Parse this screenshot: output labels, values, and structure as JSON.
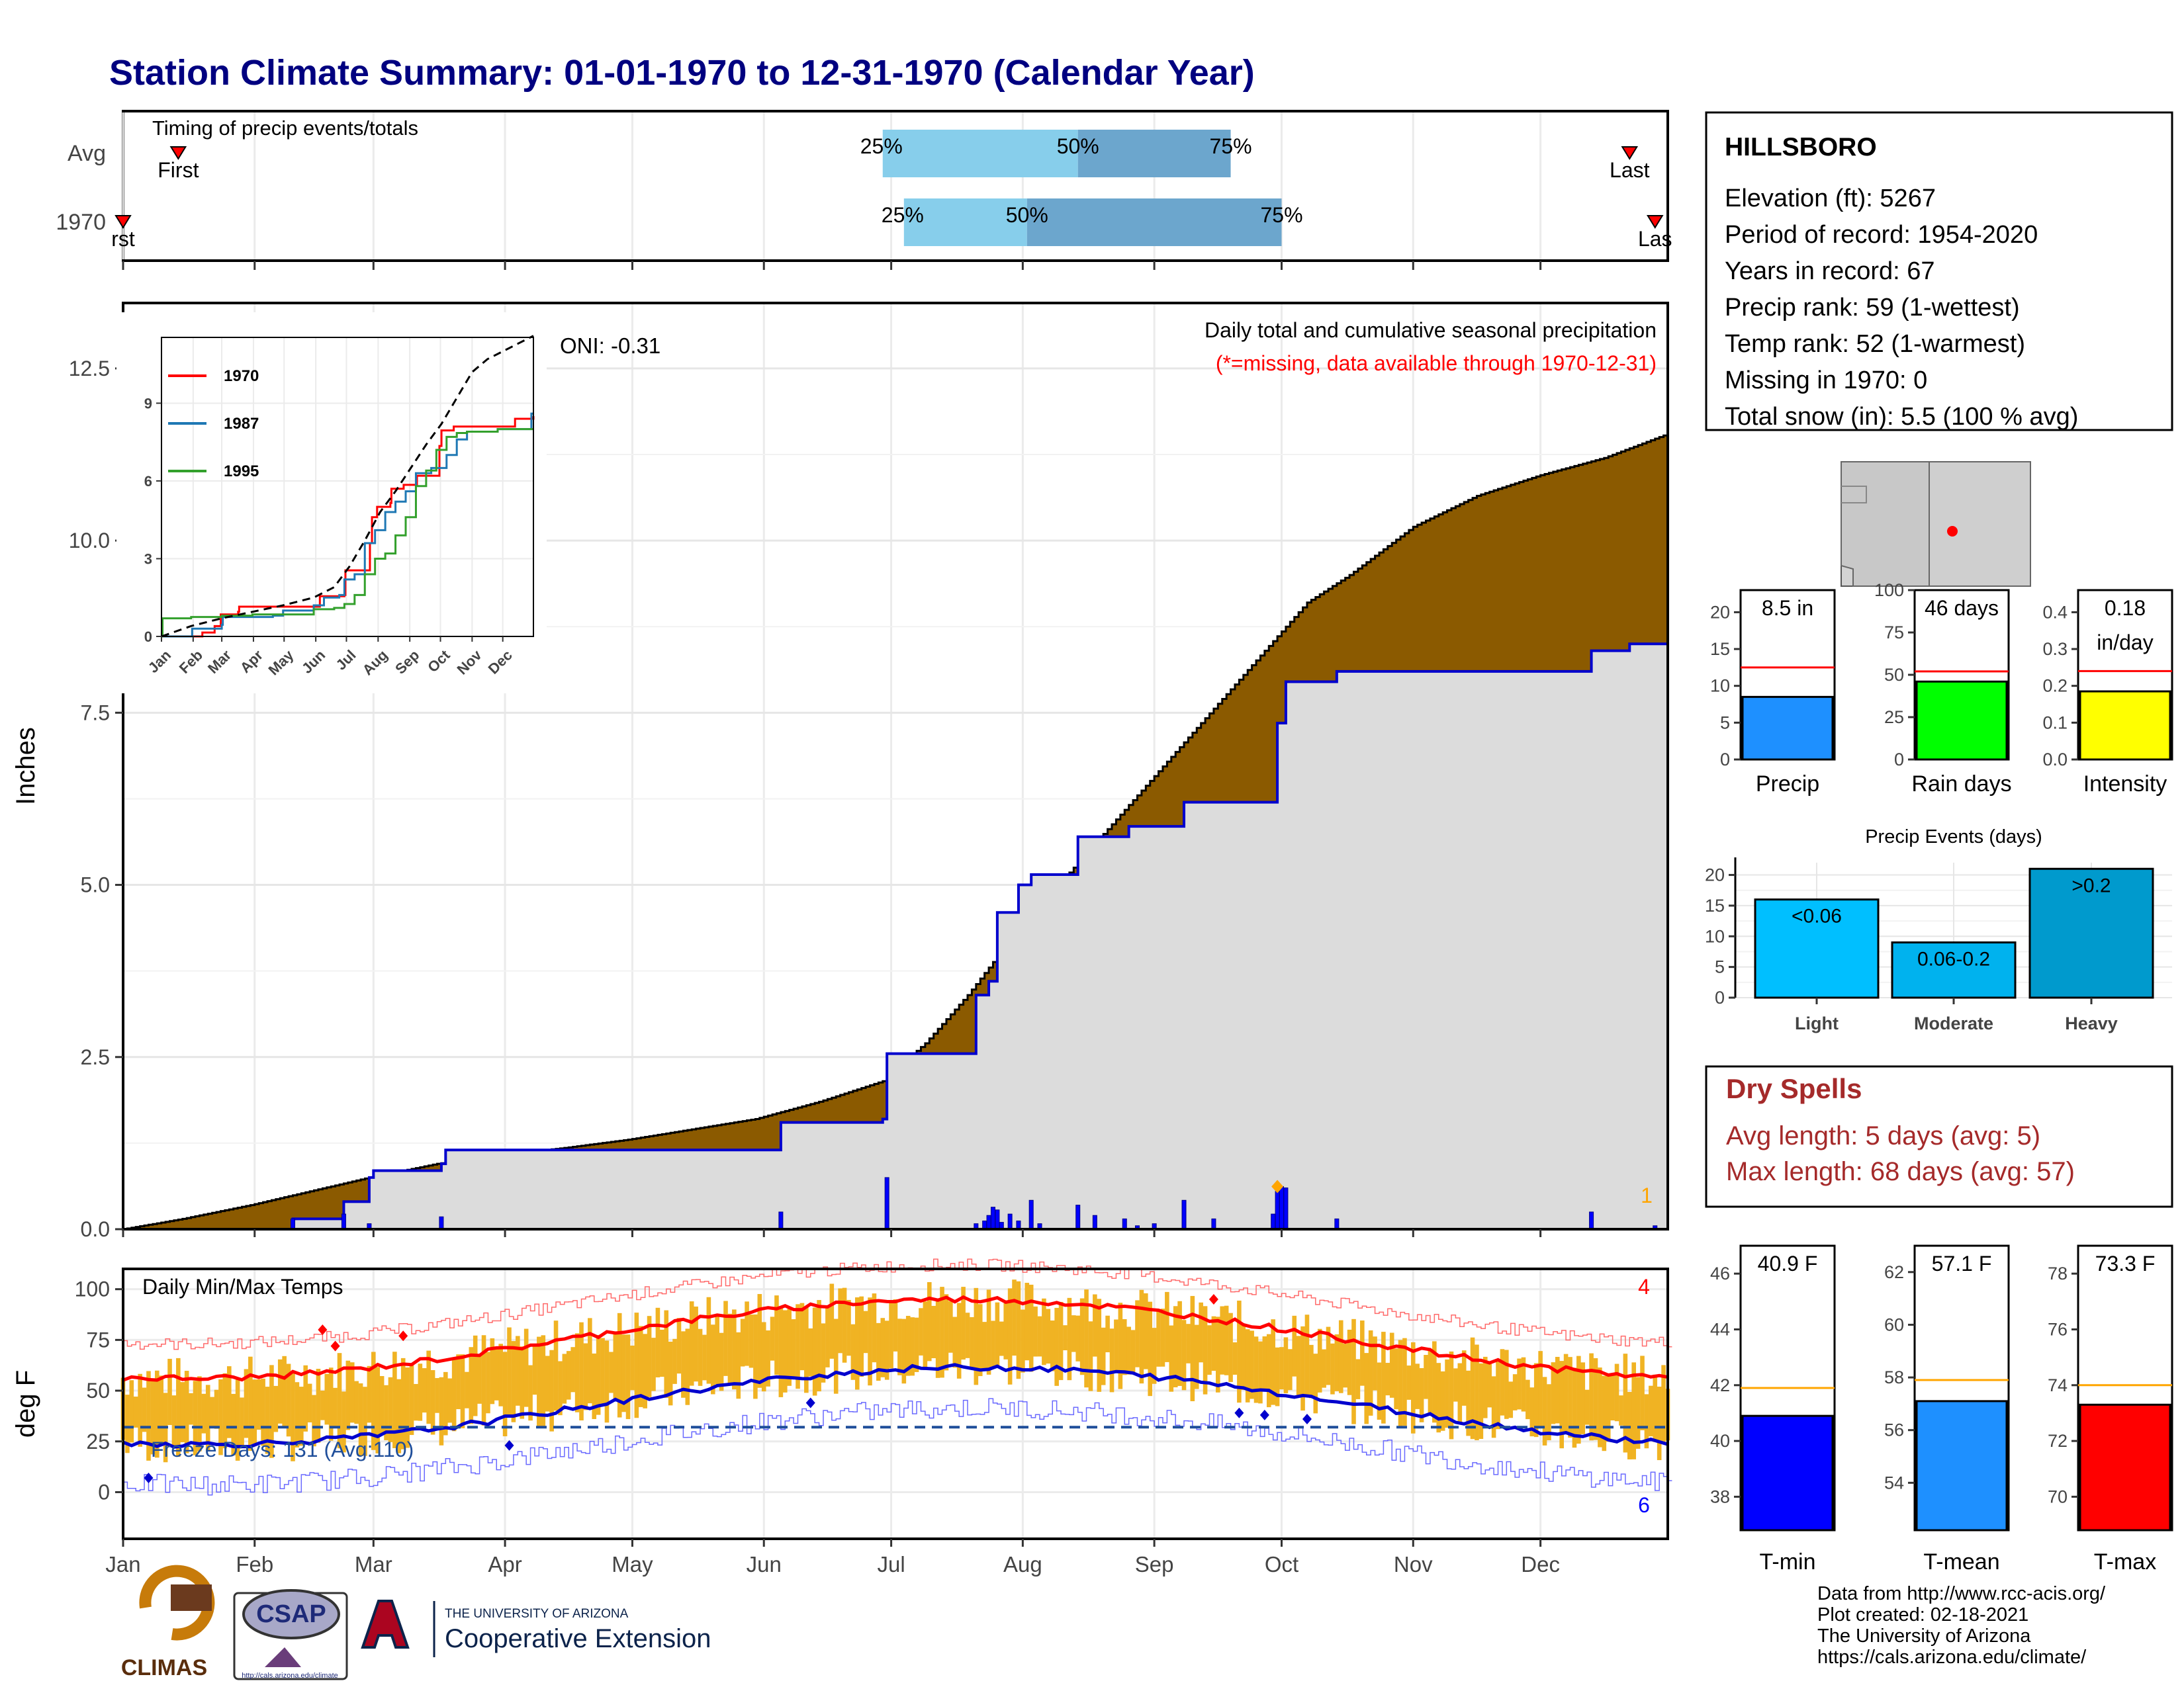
{
  "title": "Station Climate Summary: 01-01-1970 to 12-31-1970 (Calendar Year)",
  "months": [
    "Jan",
    "Feb",
    "Mar",
    "Apr",
    "May",
    "Jun",
    "Jul",
    "Aug",
    "Sep",
    "Oct",
    "Nov",
    "Dec"
  ],
  "inset_months": [
    "Jan",
    "Feb",
    "Mar",
    "Apr",
    "May",
    "Jun",
    "Jul",
    "Aug",
    "Sep",
    "Oct",
    "Nov",
    "Dec"
  ],
  "colors": {
    "navy_title": "#000080",
    "cumulative_avg": "#8B5A00",
    "cumulative_year": "#DCDCDC",
    "year_line": "#0000CD",
    "daily_bars": "#0000FF",
    "timing_light": "#87CEEB",
    "timing_dark": "#6CA6CD",
    "temp_bars": "#F0B323",
    "tmax_line": "#FF0000",
    "tmin_line": "#0000CD",
    "precip_bar": "#1E90FF",
    "raindays_bar": "#00FF00",
    "intensity_bar": "#FFFF00",
    "light_bar": "#00BFFF",
    "moderate_bar": "#00B2EE",
    "heavy_bar": "#009ACD",
    "tmin_bar": "#0000FF",
    "tmean_bar": "#1E90FF",
    "tmax_bar": "#FF0000",
    "dry_spell_text": "#A52A2A",
    "missing_note": "#FF0000"
  },
  "timing": {
    "label": "Timing of precip events/totals",
    "rows": [
      "Avg",
      "1970"
    ],
    "avg": {
      "first_label": "First",
      "last_label": "Last",
      "p25": "25%",
      "p50": "50%",
      "p75": "75%",
      "first_doy": 14,
      "p25_doy": 180,
      "p50_doy": 226,
      "p75_doy": 262,
      "last_doy": 356
    },
    "year": {
      "first_label": "rst",
      "last_label": "Las",
      "p25": "25%",
      "p50": "50%",
      "p75": "75%",
      "first_doy": 1,
      "p25_doy": 185,
      "p50_doy": 214,
      "p75_doy": 274,
      "last_doy": 362
    }
  },
  "precip_panel": {
    "ylabel": "Inches",
    "yticks": [
      "0.0",
      "2.5",
      "5.0",
      "7.5",
      "10.0",
      "12.5"
    ],
    "ymax": 12.5,
    "heading": "Daily total and cumulative seasonal precipitation",
    "missing_note": "(*=missing, data available through 1970-12-31)",
    "oni": "ONI: -0.31",
    "corner_count": "1",
    "avg_cumulative": [
      [
        1,
        0.0
      ],
      [
        15,
        0.15
      ],
      [
        31,
        0.35
      ],
      [
        45,
        0.55
      ],
      [
        59,
        0.75
      ],
      [
        75,
        0.95
      ],
      [
        90,
        1.08
      ],
      [
        105,
        1.18
      ],
      [
        120,
        1.3
      ],
      [
        135,
        1.45
      ],
      [
        150,
        1.6
      ],
      [
        165,
        1.85
      ],
      [
        180,
        2.15
      ],
      [
        190,
        2.7
      ],
      [
        200,
        3.4
      ],
      [
        210,
        4.2
      ],
      [
        220,
        4.9
      ],
      [
        230,
        5.6
      ],
      [
        240,
        6.3
      ],
      [
        250,
        7.0
      ],
      [
        260,
        7.7
      ],
      [
        270,
        8.4
      ],
      [
        280,
        9.1
      ],
      [
        290,
        9.5
      ],
      [
        305,
        10.2
      ],
      [
        320,
        10.65
      ],
      [
        335,
        10.95
      ],
      [
        350,
        11.2
      ],
      [
        365,
        11.55
      ]
    ],
    "year_cumulative": [
      [
        1,
        0.0
      ],
      [
        40,
        0.0
      ],
      [
        41,
        0.15
      ],
      [
        52,
        0.15
      ],
      [
        53,
        0.4
      ],
      [
        59,
        0.75
      ],
      [
        60,
        0.85
      ],
      [
        76,
        0.95
      ],
      [
        77,
        1.15
      ],
      [
        155,
        1.15
      ],
      [
        156,
        1.55
      ],
      [
        180,
        1.6
      ],
      [
        181,
        2.55
      ],
      [
        201,
        2.55
      ],
      [
        202,
        3.4
      ],
      [
        205,
        3.6
      ],
      [
        207,
        4.6
      ],
      [
        212,
        5.0
      ],
      [
        215,
        5.15
      ],
      [
        225,
        5.15
      ],
      [
        226,
        5.7
      ],
      [
        237,
        5.7
      ],
      [
        238,
        5.85
      ],
      [
        250,
        5.85
      ],
      [
        251,
        6.2
      ],
      [
        272,
        6.2
      ],
      [
        273,
        7.35
      ],
      [
        275,
        7.95
      ],
      [
        286,
        7.95
      ],
      [
        287,
        8.1
      ],
      [
        346,
        8.1
      ],
      [
        347,
        8.4
      ],
      [
        355,
        8.4
      ],
      [
        356,
        8.5
      ],
      [
        365,
        8.5
      ]
    ],
    "daily_bars": [
      [
        41,
        0.15
      ],
      [
        53,
        0.22
      ],
      [
        59,
        0.08
      ],
      [
        76,
        0.18
      ],
      [
        156,
        0.25
      ],
      [
        181,
        0.75
      ],
      [
        202,
        0.08
      ],
      [
        204,
        0.12
      ],
      [
        205,
        0.2
      ],
      [
        206,
        0.32
      ],
      [
        207,
        0.28
      ],
      [
        208,
        0.1
      ],
      [
        210,
        0.22
      ],
      [
        212,
        0.12
      ],
      [
        215,
        0.42
      ],
      [
        217,
        0.08
      ],
      [
        226,
        0.35
      ],
      [
        230,
        0.2
      ],
      [
        237,
        0.15
      ],
      [
        240,
        0.05
      ],
      [
        244,
        0.08
      ],
      [
        251,
        0.42
      ],
      [
        258,
        0.15
      ],
      [
        272,
        0.22
      ],
      [
        273,
        0.55
      ],
      [
        274,
        0.62
      ],
      [
        275,
        0.6
      ],
      [
        287,
        0.15
      ],
      [
        347,
        0.25
      ],
      [
        362,
        0.05
      ]
    ],
    "missing_markers": [
      [
        1,
        0.02
      ],
      [
        53,
        0.02
      ]
    ],
    "event_marker": [
      [
        273,
        0.62
      ]
    ]
  },
  "inset": {
    "yticks": [
      "0",
      "3",
      "6",
      "9"
    ],
    "ymax": 12,
    "series": [
      {
        "name": "1970",
        "color": "#FF0000",
        "points": [
          [
            1,
            0
          ],
          [
            40,
            0
          ],
          [
            41,
            0.15
          ],
          [
            53,
            0.4
          ],
          [
            59,
            0.85
          ],
          [
            76,
            0.95
          ],
          [
            77,
            1.15
          ],
          [
            155,
            1.15
          ],
          [
            156,
            1.55
          ],
          [
            180,
            1.6
          ],
          [
            181,
            2.55
          ],
          [
            201,
            2.55
          ],
          [
            205,
            3.6
          ],
          [
            207,
            4.6
          ],
          [
            212,
            5.0
          ],
          [
            225,
            5.15
          ],
          [
            226,
            5.7
          ],
          [
            237,
            5.7
          ],
          [
            238,
            5.85
          ],
          [
            250,
            5.85
          ],
          [
            251,
            6.2
          ],
          [
            272,
            6.2
          ],
          [
            273,
            7.35
          ],
          [
            275,
            7.95
          ],
          [
            286,
            7.95
          ],
          [
            287,
            8.1
          ],
          [
            346,
            8.1
          ],
          [
            347,
            8.4
          ],
          [
            365,
            8.5
          ]
        ]
      },
      {
        "name": "1987",
        "color": "#1F78B4",
        "points": [
          [
            1,
            0
          ],
          [
            30,
            0
          ],
          [
            31,
            0.3
          ],
          [
            60,
            0.45
          ],
          [
            61,
            0.75
          ],
          [
            110,
            0.8
          ],
          [
            120,
            1.0
          ],
          [
            150,
            1.2
          ],
          [
            160,
            1.5
          ],
          [
            175,
            1.6
          ],
          [
            180,
            2.2
          ],
          [
            190,
            2.4
          ],
          [
            200,
            3.6
          ],
          [
            210,
            4.1
          ],
          [
            220,
            4.8
          ],
          [
            230,
            5.2
          ],
          [
            240,
            5.6
          ],
          [
            250,
            6.3
          ],
          [
            265,
            6.5
          ],
          [
            280,
            7.0
          ],
          [
            290,
            7.6
          ],
          [
            300,
            7.9
          ],
          [
            320,
            7.9
          ],
          [
            330,
            8.0
          ],
          [
            362,
            8.0
          ],
          [
            363,
            8.6
          ],
          [
            365,
            8.6
          ]
        ]
      },
      {
        "name": "1995",
        "color": "#33A02C",
        "points": [
          [
            1,
            0
          ],
          [
            2,
            0.7
          ],
          [
            20,
            0.7
          ],
          [
            30,
            0.75
          ],
          [
            60,
            0.8
          ],
          [
            90,
            0.85
          ],
          [
            120,
            0.85
          ],
          [
            150,
            1.05
          ],
          [
            170,
            1.1
          ],
          [
            180,
            1.25
          ],
          [
            190,
            1.6
          ],
          [
            200,
            2.4
          ],
          [
            210,
            3.0
          ],
          [
            220,
            3.2
          ],
          [
            230,
            3.9
          ],
          [
            240,
            4.6
          ],
          [
            250,
            5.8
          ],
          [
            260,
            6.4
          ],
          [
            270,
            7.2
          ],
          [
            280,
            7.7
          ],
          [
            290,
            7.85
          ],
          [
            300,
            7.9
          ],
          [
            330,
            8.0
          ],
          [
            365,
            8.0
          ]
        ]
      }
    ],
    "avg_series": [
      [
        1,
        0
      ],
      [
        30,
        0.4
      ],
      [
        60,
        0.7
      ],
      [
        90,
        0.95
      ],
      [
        120,
        1.2
      ],
      [
        150,
        1.5
      ],
      [
        170,
        1.9
      ],
      [
        185,
        2.7
      ],
      [
        200,
        3.7
      ],
      [
        215,
        4.8
      ],
      [
        230,
        5.6
      ],
      [
        245,
        6.5
      ],
      [
        260,
        7.4
      ],
      [
        275,
        8.2
      ],
      [
        290,
        9.2
      ],
      [
        305,
        10.2
      ],
      [
        320,
        10.7
      ],
      [
        335,
        11.0
      ],
      [
        350,
        11.3
      ],
      [
        365,
        11.6
      ]
    ]
  },
  "temp_panel": {
    "ylabel": "deg F",
    "yticks": [
      "0",
      "25",
      "50",
      "75",
      "100"
    ],
    "title": "Daily Min/Max Temps",
    "freeze_label": "Freeze Days: 131 (Avg:110)",
    "freeze_line": 32,
    "tmax_count": "4",
    "tmin_count": "6"
  },
  "station": {
    "name": "HILLSBORO",
    "lines": [
      "Elevation (ft): 5267",
      "Period of record: 1954-2020",
      "Years in record: 67",
      "Precip rank: 59 (1-wettest)",
      "Temp rank: 52 (1-warmest)",
      "Missing in 1970: 0",
      "Total snow (in): 5.5 (100 % avg)"
    ]
  },
  "summary_bars": [
    {
      "label": "Precip",
      "value_text": "8.5 in",
      "value": 8.5,
      "avg": 12.5,
      "max": 23,
      "ticks": [
        "0",
        "5",
        "10",
        "15",
        "20"
      ],
      "tick_vals": [
        0,
        5,
        10,
        15,
        20
      ],
      "color": "#1E90FF"
    },
    {
      "label": "Rain days",
      "value_text": "46 days",
      "value": 46,
      "avg": 52,
      "max": 100,
      "ticks": [
        "0",
        "25",
        "50",
        "75",
        "100"
      ],
      "tick_vals": [
        0,
        25,
        50,
        75,
        100
      ],
      "color": "#00FF00"
    },
    {
      "label": "Intensity",
      "value_text": "0.18",
      "value_text2": "in/day",
      "value": 0.185,
      "avg": 0.24,
      "max": 0.46,
      "ticks": [
        "0.0",
        "0.1",
        "0.2",
        "0.3",
        "0.4"
      ],
      "tick_vals": [
        0,
        0.1,
        0.2,
        0.3,
        0.4
      ],
      "color": "#FFFF00"
    }
  ],
  "precip_events": {
    "title": "Precip Events (days)",
    "yticks": [
      "0",
      "5",
      "10",
      "15",
      "20"
    ],
    "bars": [
      {
        "category": "Light",
        "label": "<0.06",
        "value": 16,
        "color": "#00BFFF"
      },
      {
        "category": "Moderate",
        "label": "0.06-0.2",
        "value": 9,
        "color": "#00B2EE"
      },
      {
        "category": "Heavy",
        "label": ">0.2",
        "value": 21,
        "color": "#009ACD"
      }
    ]
  },
  "dry_spells": {
    "title": "Dry Spells",
    "avg_line": "Avg length: 5 days (avg: 5)",
    "max_line": "Max length: 68 days (avg: 57)"
  },
  "temp_bars": [
    {
      "label": "T-min",
      "value_text": "40.9 F",
      "value": 40.9,
      "avg": 41.9,
      "min": 36.8,
      "max": 47,
      "ticks": [
        "38",
        "40",
        "42",
        "44",
        "46"
      ],
      "tick_vals": [
        38,
        40,
        42,
        44,
        46
      ],
      "color": "#0000FF"
    },
    {
      "label": "T-mean",
      "value_text": "57.1 F",
      "value": 57.1,
      "avg": 57.9,
      "min": 52.2,
      "max": 63,
      "ticks": [
        "54",
        "56",
        "58",
        "60",
        "62"
      ],
      "tick_vals": [
        54,
        56,
        58,
        60,
        62
      ],
      "color": "#1E90FF"
    },
    {
      "label": "T-max",
      "value_text": "73.3 F",
      "value": 73.3,
      "avg": 74.0,
      "min": 68.8,
      "max": 79,
      "ticks": [
        "70",
        "72",
        "74",
        "76",
        "78"
      ],
      "tick_vals": [
        70,
        72,
        74,
        76,
        78
      ],
      "color": "#FF0000"
    }
  ],
  "footer": {
    "lines": [
      "Data from http://www.rcc-acis.org/",
      "Plot created: 02-18-2021",
      "The University of Arizona",
      "https://cals.arizona.edu/climate/"
    ],
    "climas_label": "CLIMAS",
    "csap_label": "CSAP",
    "csap_url": "http://cals.arizona.edu/climate",
    "ua_small": "THE UNIVERSITY OF ARIZONA",
    "ua_big": "Cooperative Extension"
  }
}
